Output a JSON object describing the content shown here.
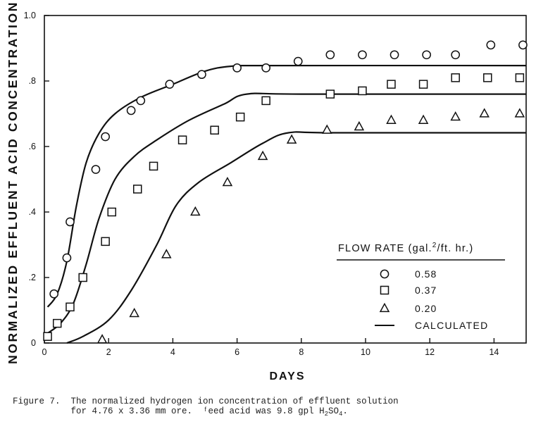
{
  "chart_data": {
    "type": "scatter",
    "ylabel": "NORMALIZED EFFLUENT ACID CONCENTRATION",
    "xlabel": "DAYS",
    "xlim": [
      0,
      15
    ],
    "ylim": [
      0,
      1.0
    ],
    "x_ticks": [
      0,
      2,
      4,
      6,
      8,
      10,
      12,
      14
    ],
    "x_tick_labels": [
      "0",
      "2",
      "4",
      "6",
      "8",
      "10",
      "12",
      "14"
    ],
    "y_ticks": [
      0,
      0.2,
      0.4,
      0.6,
      0.8,
      1.0
    ],
    "y_tick_labels": [
      "0",
      ".2",
      ".4",
      ".6",
      ".8",
      "1.0"
    ],
    "grid": false,
    "legend": {
      "title": "FLOW RATE",
      "unit_prefix": "(gal.",
      "unit_sup": "2",
      "unit_suffix": "/ft. hr.)",
      "placement": "lower-right"
    },
    "series": [
      {
        "name": "0.58",
        "marker": "circle",
        "points": [
          [
            0.3,
            0.15
          ],
          [
            0.7,
            0.26
          ],
          [
            0.8,
            0.37
          ],
          [
            1.6,
            0.53
          ],
          [
            1.9,
            0.63
          ],
          [
            2.7,
            0.71
          ],
          [
            3.0,
            0.74
          ],
          [
            3.9,
            0.79
          ],
          [
            4.9,
            0.82
          ],
          [
            6.0,
            0.84
          ],
          [
            6.9,
            0.84
          ],
          [
            7.9,
            0.86
          ],
          [
            8.9,
            0.88
          ],
          [
            9.9,
            0.88
          ],
          [
            10.9,
            0.88
          ],
          [
            11.9,
            0.88
          ],
          [
            12.8,
            0.88
          ],
          [
            13.9,
            0.91
          ],
          [
            14.9,
            0.91
          ]
        ]
      },
      {
        "name": "0.37",
        "marker": "square",
        "points": [
          [
            0.1,
            0.02
          ],
          [
            0.4,
            0.06
          ],
          [
            0.8,
            0.11
          ],
          [
            1.2,
            0.2
          ],
          [
            1.9,
            0.31
          ],
          [
            2.1,
            0.4
          ],
          [
            2.9,
            0.47
          ],
          [
            3.4,
            0.54
          ],
          [
            4.3,
            0.62
          ],
          [
            5.3,
            0.65
          ],
          [
            6.1,
            0.69
          ],
          [
            6.9,
            0.74
          ],
          [
            8.9,
            0.76
          ],
          [
            9.9,
            0.77
          ],
          [
            10.8,
            0.79
          ],
          [
            11.8,
            0.79
          ],
          [
            12.8,
            0.81
          ],
          [
            13.8,
            0.81
          ],
          [
            14.8,
            0.81
          ]
        ]
      },
      {
        "name": "0.20",
        "marker": "triangle",
        "points": [
          [
            1.8,
            0.01
          ],
          [
            2.8,
            0.09
          ],
          [
            3.8,
            0.27
          ],
          [
            4.7,
            0.4
          ],
          [
            5.7,
            0.49
          ],
          [
            6.8,
            0.57
          ],
          [
            7.7,
            0.62
          ],
          [
            8.8,
            0.65
          ],
          [
            9.8,
            0.66
          ],
          [
            10.8,
            0.68
          ],
          [
            11.8,
            0.68
          ],
          [
            12.8,
            0.69
          ],
          [
            13.7,
            0.7
          ],
          [
            14.8,
            0.7
          ]
        ]
      }
    ],
    "calculated": {
      "name": "CALCULATED",
      "curves": [
        [
          [
            0.1,
            0.11
          ],
          [
            0.4,
            0.15
          ],
          [
            0.7,
            0.25
          ],
          [
            1.0,
            0.42
          ],
          [
            1.3,
            0.55
          ],
          [
            1.7,
            0.64
          ],
          [
            2.2,
            0.7
          ],
          [
            3.0,
            0.75
          ],
          [
            4.0,
            0.79
          ],
          [
            5.0,
            0.83
          ],
          [
            5.8,
            0.845
          ],
          [
            7.0,
            0.847
          ],
          [
            15.0,
            0.847
          ]
        ],
        [
          [
            0.1,
            0.03
          ],
          [
            0.5,
            0.06
          ],
          [
            0.9,
            0.12
          ],
          [
            1.3,
            0.24
          ],
          [
            1.7,
            0.38
          ],
          [
            2.2,
            0.5
          ],
          [
            2.8,
            0.57
          ],
          [
            3.5,
            0.62
          ],
          [
            4.5,
            0.68
          ],
          [
            5.6,
            0.73
          ],
          [
            6.3,
            0.76
          ],
          [
            8.0,
            0.76
          ],
          [
            15.0,
            0.76
          ]
        ],
        [
          [
            0.7,
            0.0
          ],
          [
            1.2,
            0.02
          ],
          [
            2.0,
            0.07
          ],
          [
            2.7,
            0.16
          ],
          [
            3.5,
            0.3
          ],
          [
            4.1,
            0.42
          ],
          [
            4.8,
            0.49
          ],
          [
            5.8,
            0.55
          ],
          [
            6.8,
            0.61
          ],
          [
            7.6,
            0.642
          ],
          [
            9.0,
            0.642
          ],
          [
            15.0,
            0.642
          ]
        ]
      ]
    }
  },
  "caption": {
    "line1": "Figure 7.  The normalized hydrogen ion concentration of effluent solution",
    "line2_prefix": "           for 4.76 x 3.36 mm ore.  ᶠeed acid was 9.8 gpl H",
    "h2_sub": "2",
    "so": "SO",
    "so4_sub": "4",
    "period": "."
  }
}
